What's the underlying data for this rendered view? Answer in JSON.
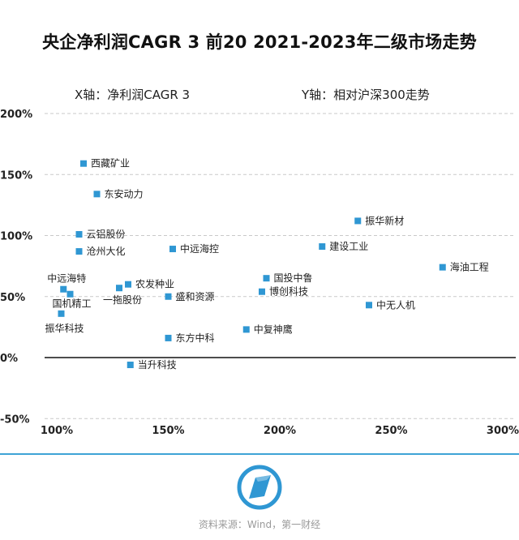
{
  "chart_data": {
    "type": "scatter",
    "title": "央企净利润CAGR 3 前20 2021-2023年二级市场走势",
    "xlabel": "X轴：净利润CAGR 3",
    "ylabel": "Y轴：相对沪深300走势",
    "xlim": [
      95,
      305
    ],
    "ylim": [
      -55,
      210
    ],
    "x_ticks": [
      100,
      150,
      200,
      250,
      300
    ],
    "x_tick_labels": [
      "100%",
      "150%",
      "200%",
      "250%",
      "300%"
    ],
    "y_ticks": [
      200,
      150,
      100,
      50,
      0,
      -50
    ],
    "y_tick_labels": [
      "200%",
      "150%",
      "100%",
      "50%",
      "0%",
      "-50%"
    ],
    "grid": "horizontal dashed",
    "marker_color": "#2f97d3",
    "zero_line_color": "#111111",
    "points": [
      {
        "label": "西藏矿业",
        "x": 112,
        "y": 159
      },
      {
        "label": "东安动力",
        "x": 118,
        "y": 134
      },
      {
        "label": "云铝股份",
        "x": 110,
        "y": 101
      },
      {
        "label": "沧州大化",
        "x": 110,
        "y": 87
      },
      {
        "label": "中远海控",
        "x": 152,
        "y": 89
      },
      {
        "label": "振华新材",
        "x": 235,
        "y": 112
      },
      {
        "label": "建设工业",
        "x": 219,
        "y": 91
      },
      {
        "label": "海油工程",
        "x": 273,
        "y": 74
      },
      {
        "label": "国投中鲁",
        "x": 194,
        "y": 65
      },
      {
        "label": "博创科技",
        "x": 192,
        "y": 54
      },
      {
        "label": "中无人机",
        "x": 240,
        "y": 43
      },
      {
        "label": "中复神鹰",
        "x": 185,
        "y": 23
      },
      {
        "label": "东方中科",
        "x": 150,
        "y": 16
      },
      {
        "label": "盛和资源",
        "x": 150,
        "y": 50
      },
      {
        "label": "农发种业",
        "x": 132,
        "y": 60
      },
      {
        "label": "一拖股份",
        "x": 128,
        "y": 57
      },
      {
        "label": "中远海特",
        "x": 103,
        "y": 56
      },
      {
        "label": "国机精工",
        "x": 106,
        "y": 52
      },
      {
        "label": "振华科技",
        "x": 102,
        "y": 36
      },
      {
        "label": "当升科技",
        "x": 133,
        "y": -6
      }
    ]
  },
  "footer": {
    "source": "资料来源：Wind，第一财经",
    "logo": "yicai-logo-icon"
  }
}
